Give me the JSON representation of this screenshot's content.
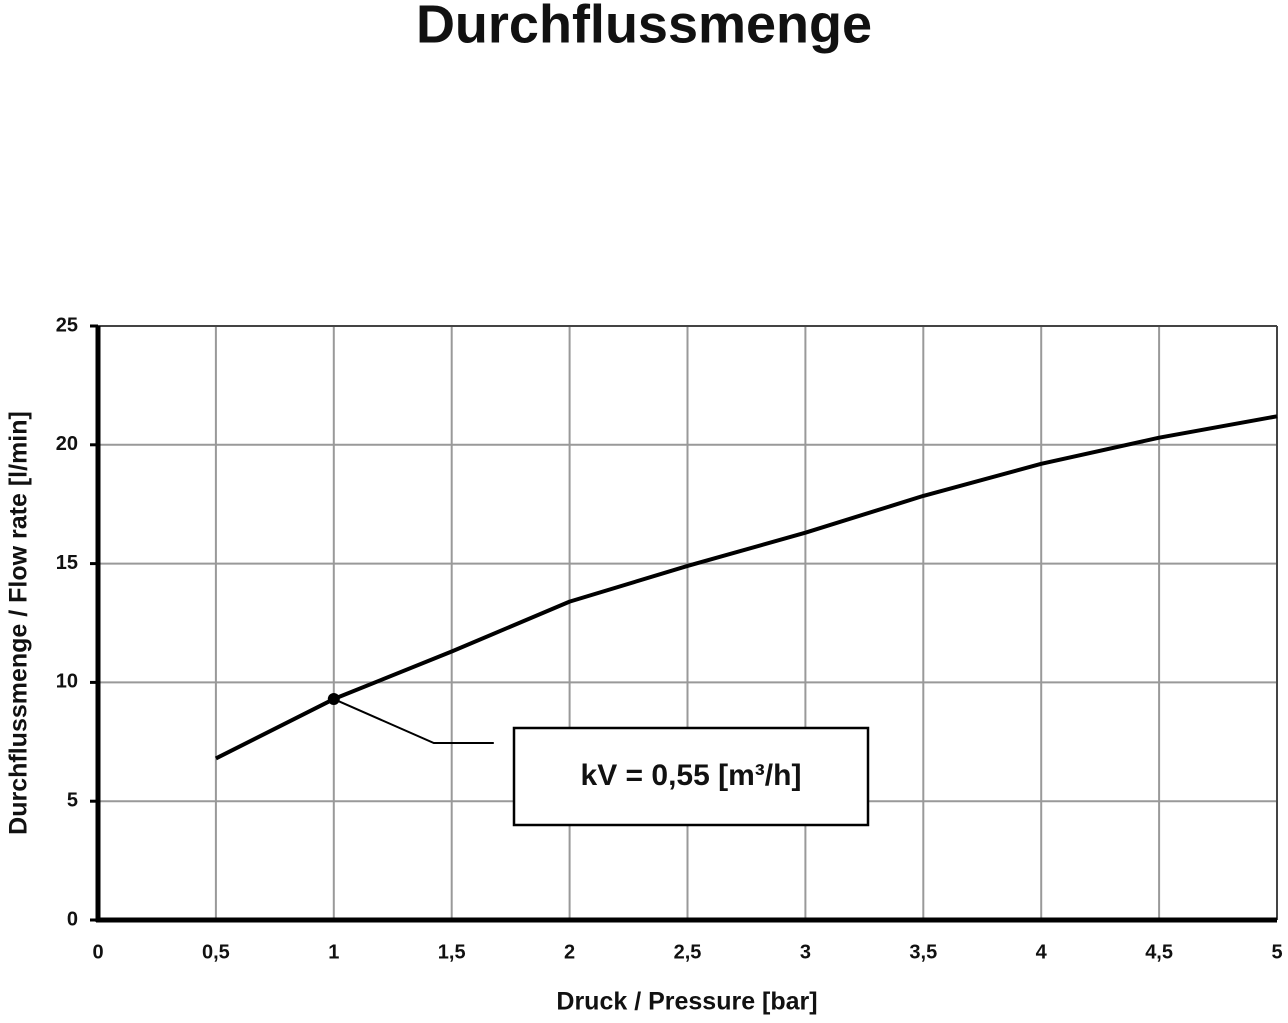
{
  "chart_data": {
    "type": "line",
    "title": "Durchflussmenge",
    "x_label": "Druck / Pressure [bar]",
    "y_label": "Durchflussmenge / Flow rate [l/min]",
    "x": [
      0.5,
      1,
      1.5,
      2,
      2.5,
      3,
      3.5,
      4,
      4.5,
      5
    ],
    "series": [
      {
        "color": "#000000",
        "values": [
          6.8,
          9.3,
          11.3,
          13.4,
          14.9,
          16.3,
          17.85,
          19.2,
          20.3,
          21.2
        ]
      }
    ],
    "xlim": [
      0,
      5
    ],
    "ylim": [
      0,
      25
    ],
    "xticks": [
      0,
      {
        "value": 0.5,
        "label": "0,5"
      },
      1,
      {
        "value": 1.5,
        "label": "1,5"
      },
      2,
      {
        "value": 2.5,
        "label": "2,5"
      },
      3,
      {
        "value": 3.5,
        "label": "3,5"
      },
      4,
      {
        "value": 4.5,
        "label": "4,5"
      },
      5
    ],
    "yticks": [
      0,
      5,
      10,
      15,
      20,
      25
    ],
    "grid": true,
    "annotations": [
      {
        "text": "kV = 0,55 [m³/h]",
        "x": 1,
        "y": 9.3
      }
    ]
  }
}
